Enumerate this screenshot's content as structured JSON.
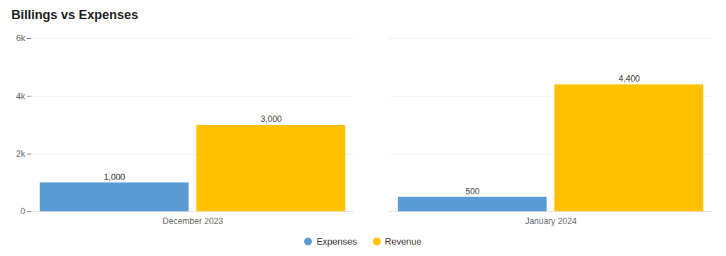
{
  "chart_data": {
    "type": "bar",
    "title": "Billings vs Expenses",
    "categories": [
      "December 2023",
      "January 2024"
    ],
    "series": [
      {
        "name": "Expenses",
        "color": "#5B9BD5",
        "values": [
          1000,
          500
        ],
        "value_labels": [
          "1,000",
          "500"
        ]
      },
      {
        "name": "Revenue",
        "color": "#FFC000",
        "values": [
          3000,
          4400
        ],
        "value_labels": [
          "3,000",
          "4,400"
        ]
      }
    ],
    "ylim": [
      0,
      6000
    ],
    "yticks": [
      0,
      {
        "value": 2000,
        "label": "2k"
      },
      {
        "value": 4000,
        "label": "4k"
      },
      {
        "value": 6000,
        "label": "6k"
      }
    ],
    "grid": true,
    "legend": "bottom",
    "data_labels": true
  }
}
